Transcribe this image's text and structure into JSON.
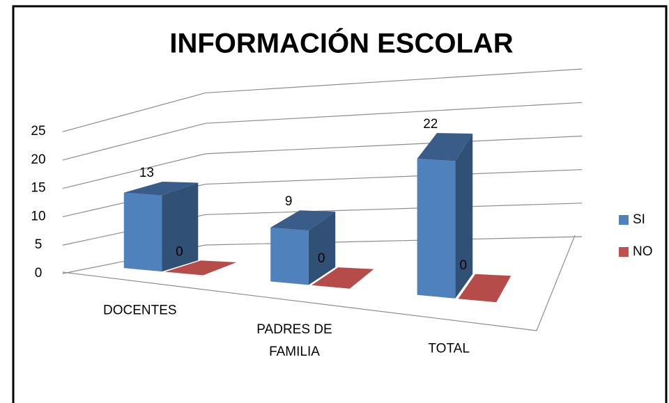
{
  "chart_data": {
    "type": "bar3d",
    "title": "INFORMACIÓN ESCOLAR",
    "categories": [
      "DOCENTES",
      "PADRES DE FAMILIA",
      "TOTAL"
    ],
    "series": [
      {
        "name": "SI",
        "color": "#4f81bd",
        "values": [
          13,
          9,
          22
        ]
      },
      {
        "name": "NO",
        "color": "#c0504d",
        "values": [
          0,
          0,
          0
        ]
      }
    ],
    "ylim": [
      0,
      25
    ],
    "yticks": [
      0,
      5,
      10,
      15,
      20,
      25
    ],
    "grid": true,
    "legend": "right"
  }
}
